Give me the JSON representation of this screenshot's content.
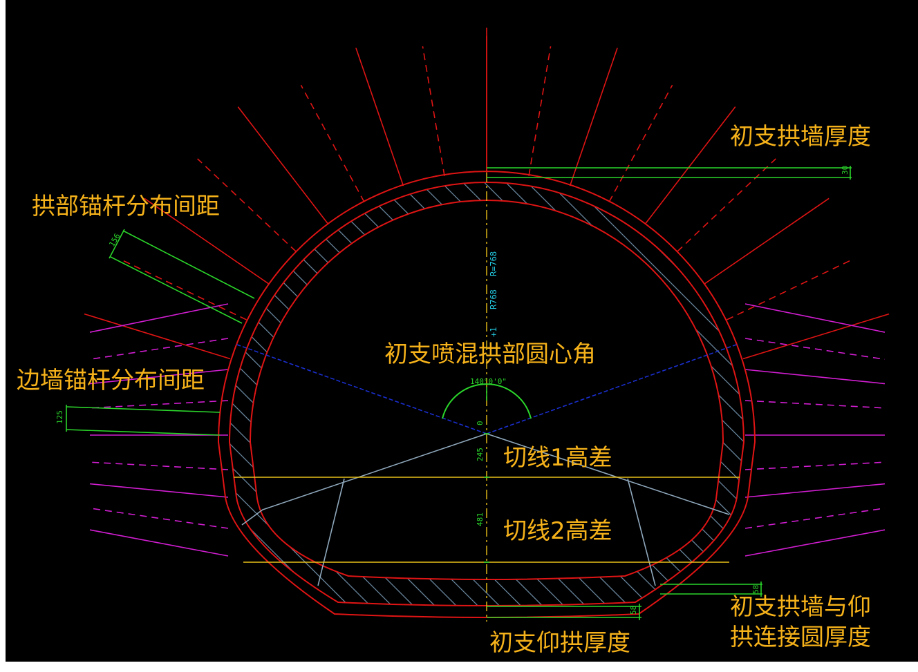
{
  "colors": {
    "background": "#000000",
    "frame": "#ffffff",
    "lining": "#e01414",
    "hatch": "#6f8fa8",
    "arch_bolt": "#e01414",
    "wall_bolt": "#d21ed2",
    "dimension": "#2bd62b",
    "annotation": "#f6b21a",
    "centerline": "#e8c018",
    "control_line": "#1a2fd0",
    "construction": "#8fa8bc"
  },
  "annotations": {
    "arch_wall_thickness": "初支拱墙厚度",
    "arch_bolt_spacing": "拱部锚杆分布间距",
    "side_wall_bolt_spacing": "边墙锚杆分布间距",
    "crown_central_angle": "初支喷混拱部圆心角",
    "tangent1_height_diff": "切线1高差",
    "tangent2_height_diff": "切线2高差",
    "wall_invert_connection_line1": "初支拱墙与仰",
    "wall_invert_connection_line2": "拱连接圆厚度",
    "invert_thickness": "初支仰拱厚度"
  },
  "dimensions": {
    "arch_thickness": "30",
    "arch_bolt_spacing": "156",
    "wall_bolt_spacing": "125",
    "crown_angle": "140°0'0\"",
    "center_offset": "0",
    "tangent1": "245",
    "tangent2": "481",
    "connection_thickness": "58",
    "invert_thickness": "58",
    "crown_radius_text": "R=768",
    "crown_extra_text": "R768",
    "crown_small_text": "+1"
  }
}
